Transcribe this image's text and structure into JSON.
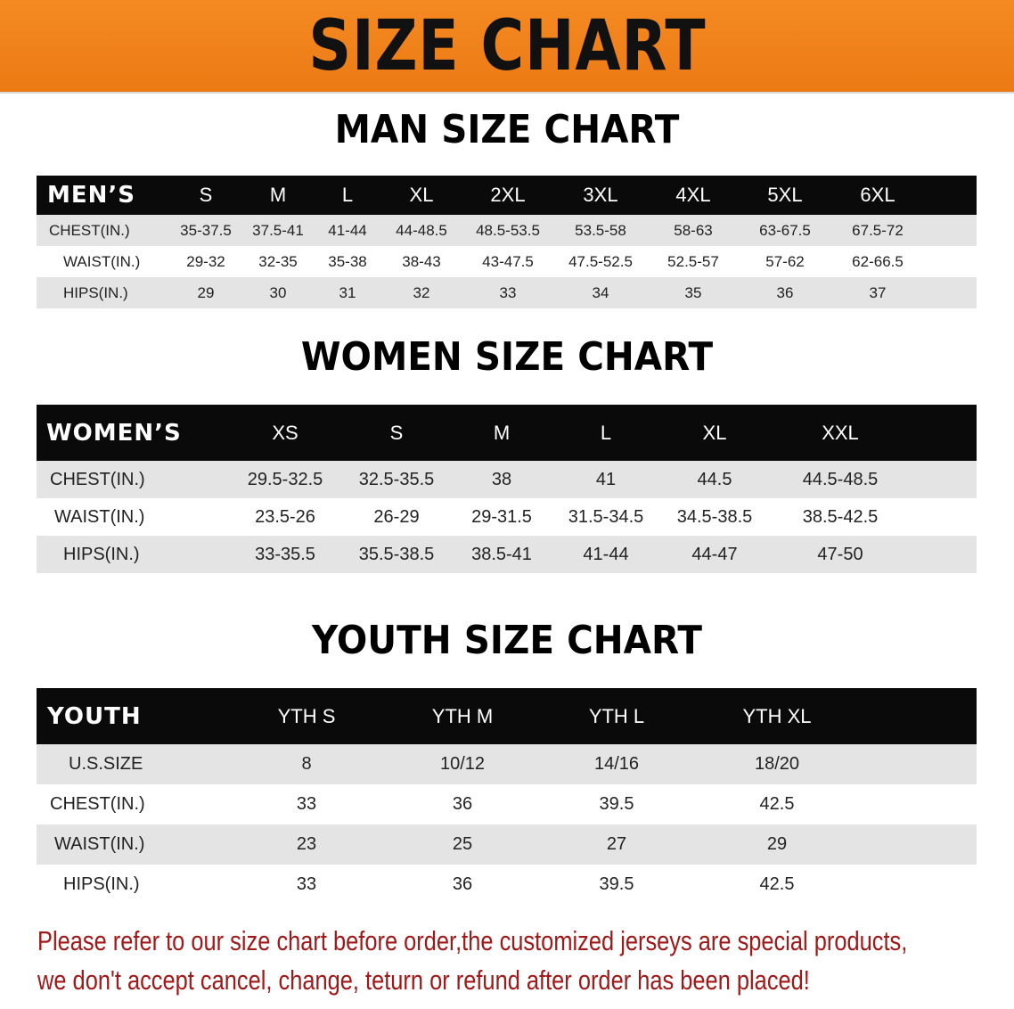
{
  "banner_title": "SIZE CHART",
  "colors": {
    "banner": "#f07f1a",
    "header_row": "#0a0a0a",
    "note_text": "#a01818",
    "row_gray": "#e4e4e4"
  },
  "men": {
    "title": "MAN SIZE CHART",
    "header": "MEN’S",
    "sizes": [
      "S",
      "M",
      "L",
      "XL",
      "2XL",
      "3XL",
      "4XL",
      "5XL",
      "6XL"
    ],
    "rows": [
      {
        "label": "CHEST(IN.)",
        "values": [
          "35-37.5",
          "37.5-41",
          "41-44",
          "44-48.5",
          "48.5-53.5",
          "53.5-58",
          "58-63",
          "63-67.5",
          "67.5-72"
        ]
      },
      {
        "label": "WAIST(IN.)",
        "values": [
          "29-32",
          "32-35",
          "35-38",
          "38-43",
          "43-47.5",
          "47.5-52.5",
          "52.5-57",
          "57-62",
          "62-66.5"
        ]
      },
      {
        "label": "HIPS(IN.)",
        "values": [
          "29",
          "30",
          "31",
          "32",
          "33",
          "34",
          "35",
          "36",
          "37"
        ]
      }
    ]
  },
  "women": {
    "title": "WOMEN SIZE CHART",
    "header": "WOMEN’S",
    "sizes": [
      "XS",
      "S",
      "M",
      "L",
      "XL",
      "XXL"
    ],
    "rows": [
      {
        "label": "CHEST(IN.)",
        "values": [
          "29.5-32.5",
          "32.5-35.5",
          "38",
          "41",
          "44.5",
          "44.5-48.5"
        ]
      },
      {
        "label": "WAIST(IN.)",
        "values": [
          "23.5-26",
          "26-29",
          "29-31.5",
          "31.5-34.5",
          "34.5-38.5",
          "38.5-42.5"
        ]
      },
      {
        "label": "HIPS(IN.)",
        "values": [
          "33-35.5",
          "35.5-38.5",
          "38.5-41",
          "41-44",
          "44-47",
          "47-50"
        ]
      }
    ]
  },
  "youth": {
    "title": "YOUTH SIZE CHART",
    "header": "YOUTH",
    "sizes": [
      "YTH S",
      "YTH M",
      "YTH L",
      "YTH XL"
    ],
    "rows": [
      {
        "label": "U.S.SIZE",
        "values": [
          "8",
          "10/12",
          "14/16",
          "18/20"
        ]
      },
      {
        "label": "CHEST(IN.)",
        "values": [
          "33",
          "36",
          "39.5",
          "42.5"
        ]
      },
      {
        "label": "WAIST(IN.)",
        "values": [
          "23",
          "25",
          "27",
          "29"
        ]
      },
      {
        "label": "HIPS(IN.)",
        "values": [
          "33",
          "36",
          "39.5",
          "42.5"
        ]
      }
    ]
  },
  "note": {
    "line1": "Please refer to our size chart before order,the customized jerseys are special products,",
    "line2": "we don't accept cancel, change, teturn or refund after order has been placed!"
  }
}
